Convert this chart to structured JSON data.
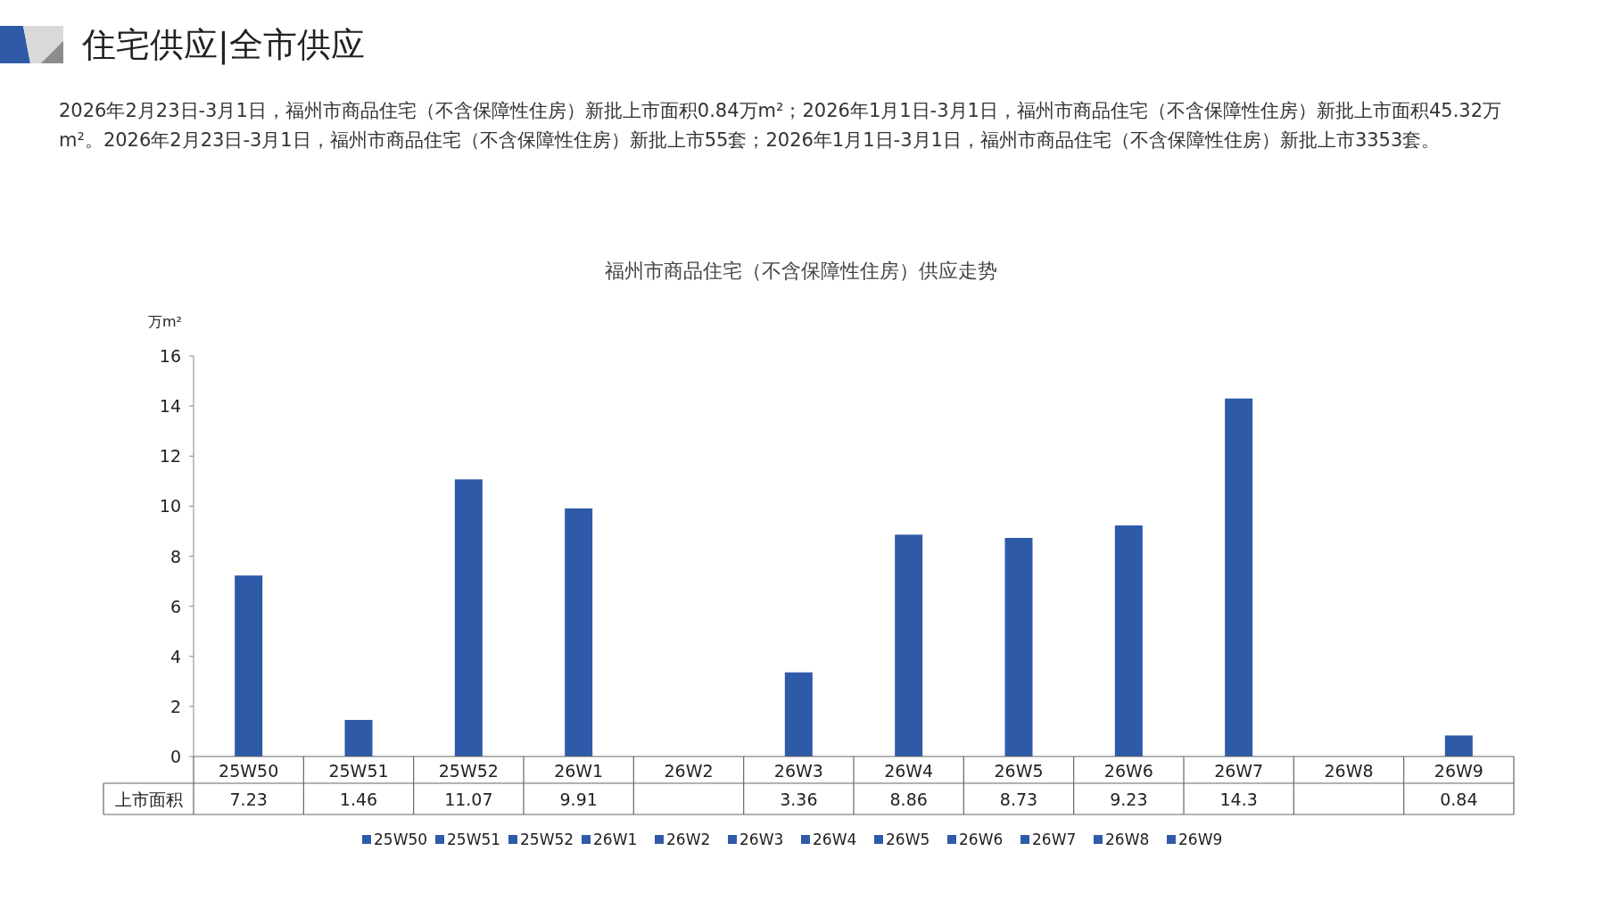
{
  "chart_data": {
    "type": "bar",
    "title": "福州市商品住宅（不含保障性住房）供应走势",
    "ylabel": "万m²",
    "annotations": [
      "住宅供应|全市供应",
      "2026年2月23日-3月1日，福州市商品住宅（不含保障性住房）新批上市面积0.84万m²；2026年1月1日-3月1日，福州市商品住宅（不含保障性住房）新批上市面积45.32万m²。2026年2月23日-3月1日，福州市商品住宅（不含保障性住房）新批上市55套；2026年1月1日-3月1日，福州市商品住宅（不含保障性住房）新批上市3353套。"
    ],
    "categories": [
      "25W50",
      "25W51",
      "25W52",
      "26W1",
      "26W2",
      "26W3",
      "26W4",
      "26W5",
      "26W6",
      "26W7",
      "26W8",
      "26W9"
    ],
    "series": [
      {
        "name": "上市面积",
        "color": "#2f5aa8",
        "values": [
          7.23,
          1.46,
          11.07,
          9.91,
          null,
          3.36,
          8.86,
          8.73,
          9.23,
          14.3,
          null,
          0.84
        ]
      }
    ],
    "ylim": [
      0,
      16
    ],
    "yticks": [
      0,
      2,
      4,
      6,
      8,
      10,
      12,
      14,
      16
    ],
    "data_labels": true,
    "legend": "bottom"
  }
}
